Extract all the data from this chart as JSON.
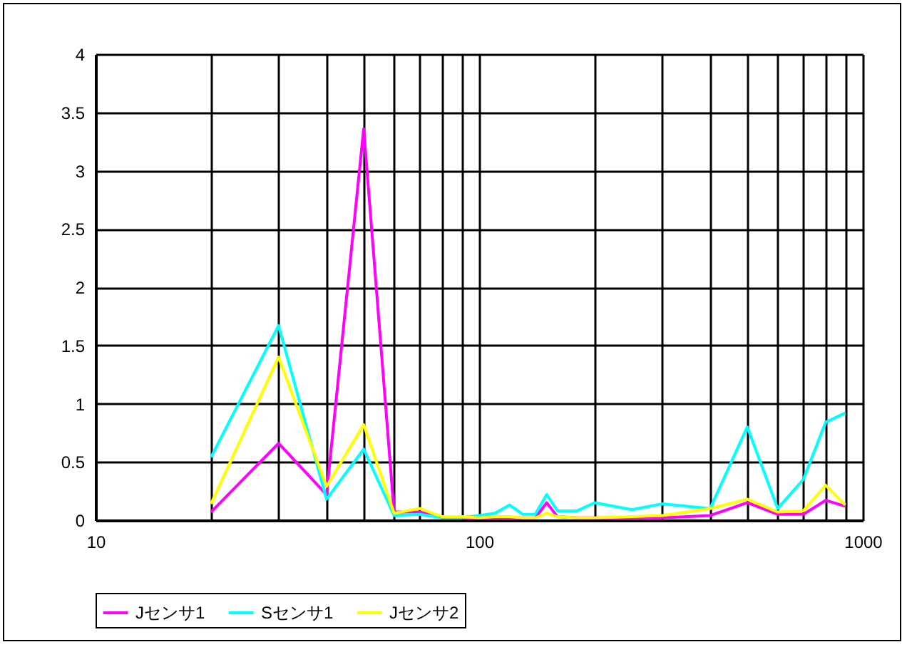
{
  "chart_data": {
    "type": "line",
    "x": [
      20,
      30,
      40,
      50,
      60,
      70,
      80,
      90,
      100,
      110,
      120,
      130,
      140,
      150,
      160,
      180,
      200,
      250,
      300,
      400,
      500,
      600,
      700,
      800,
      900
    ],
    "series": [
      {
        "name": "Jセンサ1",
        "color": "#ff00ff",
        "values": [
          0.07,
          0.66,
          0.22,
          3.36,
          0.07,
          0.07,
          0.02,
          0.02,
          0.02,
          0.02,
          0.02,
          0.02,
          0.02,
          0.15,
          0.03,
          0.02,
          0.02,
          0.02,
          0.02,
          0.04,
          0.15,
          0.05,
          0.05,
          0.17,
          0.12
        ]
      },
      {
        "name": "Sセンサ1",
        "color": "#00ffff",
        "values": [
          0.54,
          1.67,
          0.18,
          0.61,
          0.04,
          0.05,
          0.02,
          0.02,
          0.04,
          0.06,
          0.13,
          0.05,
          0.05,
          0.22,
          0.08,
          0.08,
          0.15,
          0.09,
          0.14,
          0.1,
          0.8,
          0.1,
          0.35,
          0.84,
          0.92
        ]
      },
      {
        "name": "Jセンサ2",
        "color": "#ffff00",
        "values": [
          0.14,
          1.4,
          0.29,
          0.82,
          0.06,
          0.1,
          0.03,
          0.03,
          0.02,
          0.03,
          0.03,
          0.02,
          0.02,
          0.06,
          0.03,
          0.02,
          0.02,
          0.03,
          0.04,
          0.1,
          0.18,
          0.07,
          0.08,
          0.3,
          0.13
        ]
      }
    ],
    "log": "x",
    "xlim": [
      10,
      1000
    ],
    "xticks": [
      10,
      {
        "value": 20,
        "label": null
      },
      {
        "value": 30,
        "label": null
      },
      {
        "value": 40,
        "label": null
      },
      {
        "value": 50,
        "label": null
      },
      {
        "value": 60,
        "label": null
      },
      {
        "value": 70,
        "label": null
      },
      {
        "value": 80,
        "label": null
      },
      {
        "value": 90,
        "label": null
      },
      100,
      {
        "value": 200,
        "label": null
      },
      {
        "value": 300,
        "label": null
      },
      {
        "value": 400,
        "label": null
      },
      {
        "value": 500,
        "label": null
      },
      {
        "value": 600,
        "label": null
      },
      {
        "value": 700,
        "label": null
      },
      {
        "value": 800,
        "label": null
      },
      {
        "value": 900,
        "label": null
      },
      1000
    ],
    "ylim": [
      0,
      4
    ],
    "yticks": [
      0,
      0.5,
      1,
      1.5,
      2,
      2.5,
      3,
      3.5,
      4
    ],
    "grid": true,
    "legend": "bottom",
    "marker": "none",
    "line_style": "solid"
  }
}
